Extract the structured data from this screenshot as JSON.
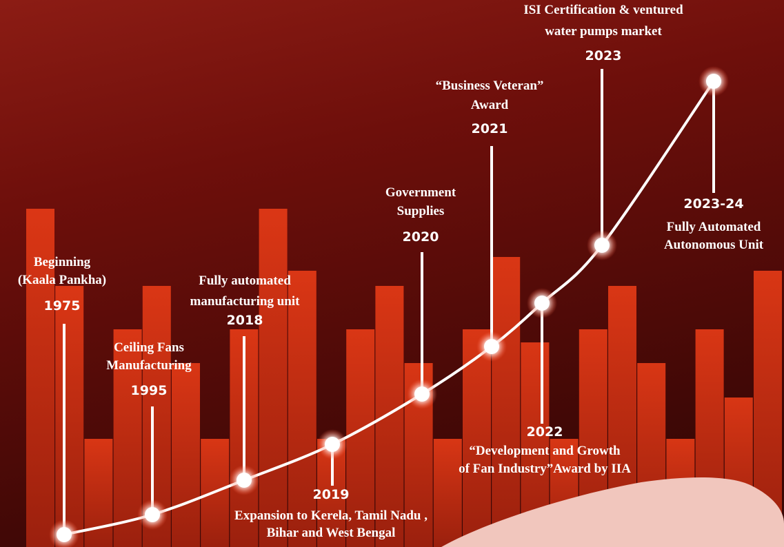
{
  "milestones": [
    {
      "year": "1975",
      "label": [
        "Beginning",
        "(Kaala Pankha)"
      ]
    },
    {
      "year": "1995",
      "label": [
        "Ceiling Fans",
        "Manufacturing"
      ]
    },
    {
      "year": "2018",
      "label": [
        "Fully automated",
        "manufacturing unit"
      ]
    },
    {
      "year": "2019",
      "label": [
        "Expansion to Kerela, Tamil Nadu ,",
        "Bihar and West Bengal"
      ]
    },
    {
      "year": "2020",
      "label": [
        "Government",
        "Supplies"
      ]
    },
    {
      "year": "2021",
      "label": [
        "“Business Veteran”",
        "Award"
      ]
    },
    {
      "year": "2022",
      "label": [
        "“Development and Growth",
        "of Fan Industry”Award by IIA"
      ]
    },
    {
      "year": "2023",
      "label": [
        "ISI Certification & ventured",
        "water pumps market"
      ]
    },
    {
      "year": "2023-24",
      "label": [
        "Fully Automated",
        "Autonomous Unit"
      ]
    }
  ]
}
